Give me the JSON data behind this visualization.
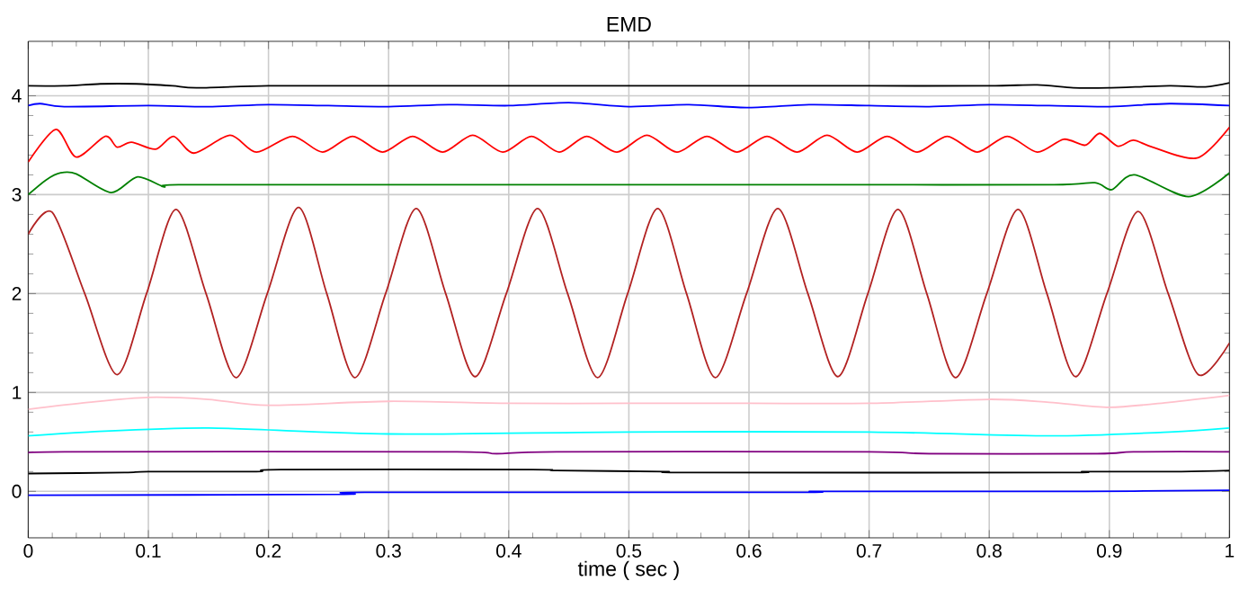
{
  "chart_data": {
    "type": "line",
    "title": "EMD",
    "xlabel": "time ( sec )",
    "xlim": [
      0,
      1
    ],
    "ylim": [
      -0.47,
      4.55
    ],
    "xticks": [
      0,
      0.1,
      0.2,
      0.3,
      0.4,
      0.5,
      0.6,
      0.7,
      0.8,
      0.9,
      1
    ],
    "yticks": [
      0,
      1,
      2,
      3,
      4
    ],
    "grid": true,
    "marker": "none",
    "line_style": "solid",
    "series": [
      {
        "color": "#000000",
        "x": [
          0,
          0.03,
          0.06,
          0.09,
          0.12,
          0.14,
          0.2,
          0.3,
          0.4,
          0.5,
          0.6,
          0.7,
          0.8,
          0.84,
          0.87,
          0.9,
          0.95,
          0.98,
          1
        ],
        "values": [
          4.1,
          4.1,
          4.12,
          4.12,
          4.1,
          4.08,
          4.1,
          4.1,
          4.1,
          4.1,
          4.1,
          4.1,
          4.1,
          4.11,
          4.08,
          4.08,
          4.1,
          4.09,
          4.13
        ]
      },
      {
        "color": "#0000ff",
        "x": [
          0,
          0.01,
          0.03,
          0.1,
          0.15,
          0.2,
          0.25,
          0.3,
          0.35,
          0.4,
          0.45,
          0.5,
          0.55,
          0.6,
          0.65,
          0.7,
          0.75,
          0.8,
          0.85,
          0.9,
          0.95,
          1
        ],
        "values": [
          3.9,
          3.92,
          3.89,
          3.9,
          3.89,
          3.91,
          3.9,
          3.89,
          3.91,
          3.9,
          3.93,
          3.89,
          3.91,
          3.88,
          3.91,
          3.9,
          3.89,
          3.91,
          3.9,
          3.89,
          3.92,
          3.9
        ]
      },
      {
        "color": "#ff0000",
        "x": [
          0,
          0.023,
          0.04,
          0.064,
          0.074,
          0.086,
          0.106,
          0.121,
          0.138,
          0.168,
          0.19,
          0.22,
          0.245,
          0.27,
          0.295,
          0.32,
          0.345,
          0.37,
          0.395,
          0.419,
          0.442,
          0.465,
          0.49,
          0.515,
          0.54,
          0.565,
          0.59,
          0.615,
          0.64,
          0.665,
          0.69,
          0.715,
          0.74,
          0.765,
          0.79,
          0.815,
          0.84,
          0.862,
          0.88,
          0.892,
          0.907,
          0.92,
          0.936,
          0.973,
          1
        ],
        "values": [
          3.33,
          3.66,
          3.38,
          3.59,
          3.48,
          3.53,
          3.46,
          3.59,
          3.42,
          3.6,
          3.43,
          3.59,
          3.43,
          3.59,
          3.43,
          3.59,
          3.43,
          3.6,
          3.43,
          3.59,
          3.43,
          3.59,
          3.43,
          3.6,
          3.43,
          3.59,
          3.43,
          3.59,
          3.43,
          3.6,
          3.43,
          3.59,
          3.43,
          3.59,
          3.43,
          3.59,
          3.43,
          3.56,
          3.5,
          3.62,
          3.49,
          3.55,
          3.48,
          3.37,
          3.68
        ]
      },
      {
        "color": "#008000",
        "x": [
          0,
          0.015,
          0.027,
          0.04,
          0.069,
          0.091,
          0.113,
          0.125,
          0.3,
          0.5,
          0.7,
          0.854,
          0.888,
          0.902,
          0.921,
          0.966,
          1
        ],
        "values": [
          3.0,
          3.15,
          3.22,
          3.21,
          3.02,
          3.18,
          3.08,
          3.1,
          3.1,
          3.1,
          3.1,
          3.1,
          3.12,
          3.05,
          3.2,
          2.98,
          3.22
        ]
      },
      {
        "color": "#b22222",
        "x": [
          0,
          0.02,
          0.047,
          0.074,
          0.0985,
          0.123,
          0.148,
          0.173,
          0.199,
          0.225,
          0.2485,
          0.272,
          0.2975,
          0.323,
          0.3475,
          0.372,
          0.398,
          0.424,
          0.449,
          0.474,
          0.499,
          0.524,
          0.548,
          0.572,
          0.598,
          0.624,
          0.649,
          0.674,
          0.699,
          0.724,
          0.748,
          0.772,
          0.798,
          0.824,
          0.848,
          0.872,
          0.898,
          0.924,
          0.949,
          0.974,
          1
        ],
        "values": [
          2.6,
          2.82,
          2.0,
          1.18,
          2.0,
          2.85,
          2.0,
          1.15,
          2.0,
          2.87,
          2.0,
          1.15,
          2.0,
          2.86,
          2.0,
          1.16,
          2.0,
          2.86,
          2.0,
          1.15,
          2.0,
          2.86,
          2.0,
          1.15,
          2.0,
          2.86,
          2.0,
          1.16,
          2.0,
          2.85,
          2.0,
          1.15,
          2.0,
          2.85,
          2.0,
          1.16,
          2.0,
          2.83,
          2.0,
          1.18,
          1.5
        ]
      },
      {
        "color": "#ffc0cb",
        "x": [
          0,
          0.05,
          0.1,
          0.15,
          0.2,
          0.3,
          0.4,
          0.5,
          0.6,
          0.7,
          0.8,
          0.85,
          0.9,
          0.95,
          1
        ],
        "values": [
          0.83,
          0.9,
          0.95,
          0.93,
          0.87,
          0.91,
          0.89,
          0.89,
          0.89,
          0.89,
          0.93,
          0.9,
          0.85,
          0.9,
          0.97
        ]
      },
      {
        "color": "#00ffff",
        "x": [
          0,
          0.05,
          0.15,
          0.3,
          0.5,
          0.7,
          0.85,
          0.95,
          1
        ],
        "values": [
          0.56,
          0.6,
          0.64,
          0.58,
          0.6,
          0.6,
          0.56,
          0.6,
          0.64
        ]
      },
      {
        "color": "#800080",
        "x": [
          0,
          0.03,
          0.35,
          0.39,
          0.44,
          0.7,
          0.75,
          0.89,
          0.92,
          1
        ],
        "values": [
          0.38,
          0.4,
          0.4,
          0.38,
          0.4,
          0.4,
          0.38,
          0.38,
          0.4,
          0.4
        ]
      },
      {
        "color": "#000000",
        "x": [
          0,
          0.08,
          0.1,
          0.19,
          0.21,
          0.42,
          0.44,
          0.53,
          0.55,
          0.86,
          0.88,
          0.96,
          1
        ],
        "values": [
          0.18,
          0.19,
          0.2,
          0.2,
          0.22,
          0.22,
          0.21,
          0.2,
          0.19,
          0.19,
          0.2,
          0.2,
          0.21
        ]
      },
      {
        "color": "#0000ff",
        "x": [
          0,
          0.26,
          0.28,
          0.64,
          0.66,
          0.88,
          1
        ],
        "values": [
          -0.04,
          -0.03,
          -0.01,
          -0.01,
          0,
          0,
          0.01
        ]
      }
    ]
  }
}
